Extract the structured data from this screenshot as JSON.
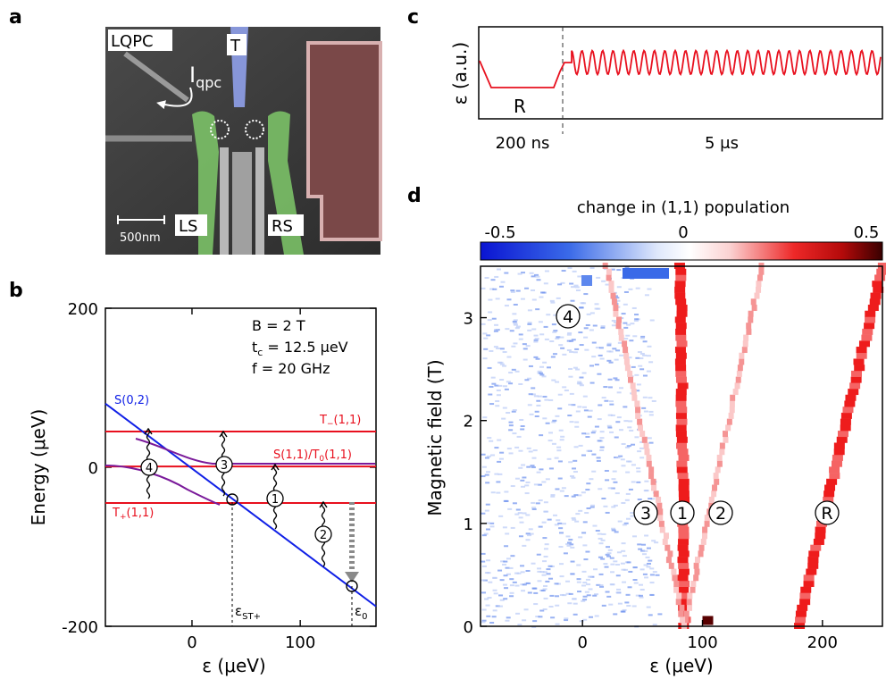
{
  "panel_labels": {
    "a": "a",
    "b": "b",
    "c": "c",
    "d": "d"
  },
  "colors": {
    "dot_highlight": "#7fc96a",
    "top_gate": "#8fa0ea",
    "reservoir": "#c07070",
    "level_red": "#e8101e",
    "level_blue": "#1020e6",
    "anticross_purple": "#7a1a9a",
    "pulse_red": "#e8101e"
  },
  "panel_a": {
    "labels": {
      "lqpc": "LQPC",
      "top": "T",
      "ls": "LS",
      "rs": "RS",
      "iqpc_main": "I",
      "iqpc_sub": "qpc"
    },
    "scalebar": "500nm"
  },
  "panel_b": {
    "annotations": {
      "field": "B = 2 T",
      "tc_main": "t",
      "tc_sub": "c",
      "tc_val": " = 12.5 μeV",
      "freq": "f  = 20 GHz",
      "s02": "S(0,2)",
      "tminus": "T",
      "tminus_sub": "−",
      "tminus_tail": "(1,1)",
      "s11t0": "S(1,1)/T",
      "s11t0_sub": "0",
      "s11t0_tail": "(1,1)",
      "tplus": "T",
      "tplus_sub": "+",
      "tplus_tail": "(1,1)",
      "eps_st": "ε",
      "eps_st_sub": "ST+",
      "eps0": "ε",
      "eps0_sub": "0"
    },
    "markers": [
      "4",
      "3",
      "1",
      "2"
    ],
    "chart_data": {
      "type": "line",
      "xlabel": "ε (μeV)",
      "ylabel": "Energy (μeV)",
      "xlim": [
        -80,
        170
      ],
      "ylim": [
        -200,
        200
      ],
      "xticks": [
        0,
        100
      ],
      "yticks": [
        200,
        0,
        -200
      ],
      "series": [
        {
          "name": "T−(1,1)",
          "x": [
            -80,
            170
          ],
          "y": [
            45,
            45
          ]
        },
        {
          "name": "S(1,1)/T0(1,1)",
          "x": [
            -80,
            170
          ],
          "y": [
            1,
            1
          ]
        },
        {
          "name": "T+(1,1)",
          "x": [
            -80,
            170
          ],
          "y": [
            -45,
            -45
          ]
        },
        {
          "name": "S(0,2)",
          "x": [
            -80,
            170
          ],
          "y": [
            80,
            -175
          ]
        }
      ]
    }
  },
  "panel_c": {
    "ylabel": "ε (a.u.)",
    "r_label": "R",
    "time1": "200 ns",
    "time2": "5 μs"
  },
  "panel_d": {
    "colorbar_title": "change in (1,1) population",
    "colorbar_ticks": [
      "-0.5",
      "0",
      "0.5"
    ],
    "markers": [
      "4",
      "3",
      "1",
      "2",
      "R"
    ],
    "chart_data": {
      "type": "heatmap",
      "xlabel": "ε (μeV)",
      "ylabel": "Magnetic field (T)",
      "xlim": [
        -85,
        250
      ],
      "ylim": [
        0,
        3.5
      ],
      "xticks": [
        0,
        100,
        200
      ],
      "yticks": [
        0,
        1,
        2,
        3
      ],
      "clim": [
        -0.5,
        0.5
      ],
      "resonances": [
        {
          "name": "1",
          "x_at_B0": 85,
          "x_at_B3p5": 82
        },
        {
          "name": "2",
          "x_at_B0": 85,
          "x_at_B3p5": 150
        },
        {
          "name": "3",
          "x_at_B0": 85,
          "x_at_B3p5": 20
        },
        {
          "name": "R",
          "x_at_B0": 180,
          "x_at_B3p5": 250
        }
      ]
    }
  }
}
